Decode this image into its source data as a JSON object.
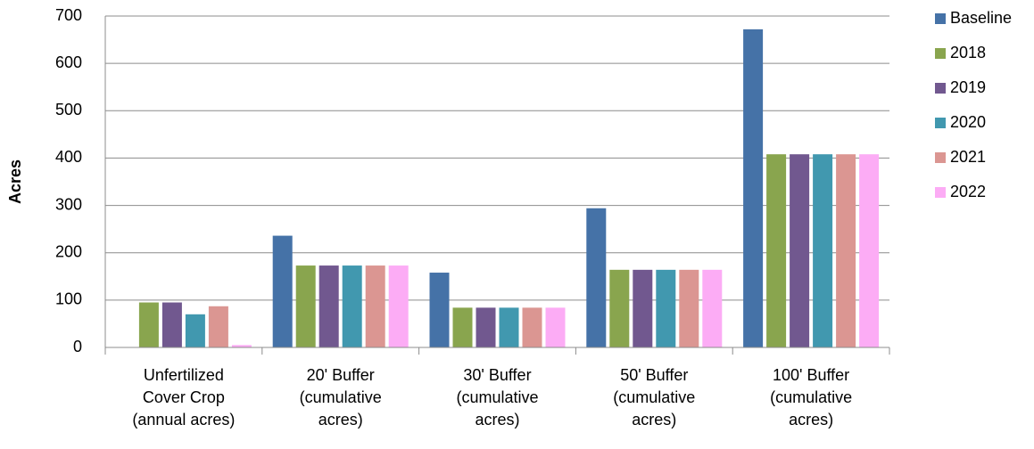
{
  "chart_data": {
    "type": "bar",
    "y_label": "Acres",
    "categories": [
      "Unfertilized\nCover Crop\n(annual acres)",
      "20' Buffer\n(cumulative\nacres)",
      "30' Buffer\n(cumulative\nacres)",
      "50' Buffer\n(cumulative\nacres)",
      "100' Buffer\n(cumulative\nacres)"
    ],
    "series": [
      {
        "name": "Baseline",
        "color": "#4572a7",
        "values": [
          0,
          236,
          158,
          294,
          672
        ]
      },
      {
        "name": "2018",
        "color": "#89a54e",
        "values": [
          95,
          173,
          84,
          164,
          408
        ]
      },
      {
        "name": "2019",
        "color": "#71588f",
        "values": [
          95,
          173,
          84,
          164,
          408
        ]
      },
      {
        "name": "2020",
        "color": "#4198af",
        "values": [
          70,
          173,
          84,
          164,
          408
        ]
      },
      {
        "name": "2021",
        "color": "#db9692",
        "values": [
          87,
          173,
          84,
          164,
          408
        ]
      },
      {
        "name": "2022",
        "color": "#fcacf5",
        "values": [
          5,
          173,
          84,
          164,
          408
        ]
      }
    ],
    "ylim": [
      0,
      700
    ],
    "yticks": [
      0,
      100,
      200,
      300,
      400,
      500,
      600,
      700
    ],
    "grid": true,
    "legend": "right"
  }
}
